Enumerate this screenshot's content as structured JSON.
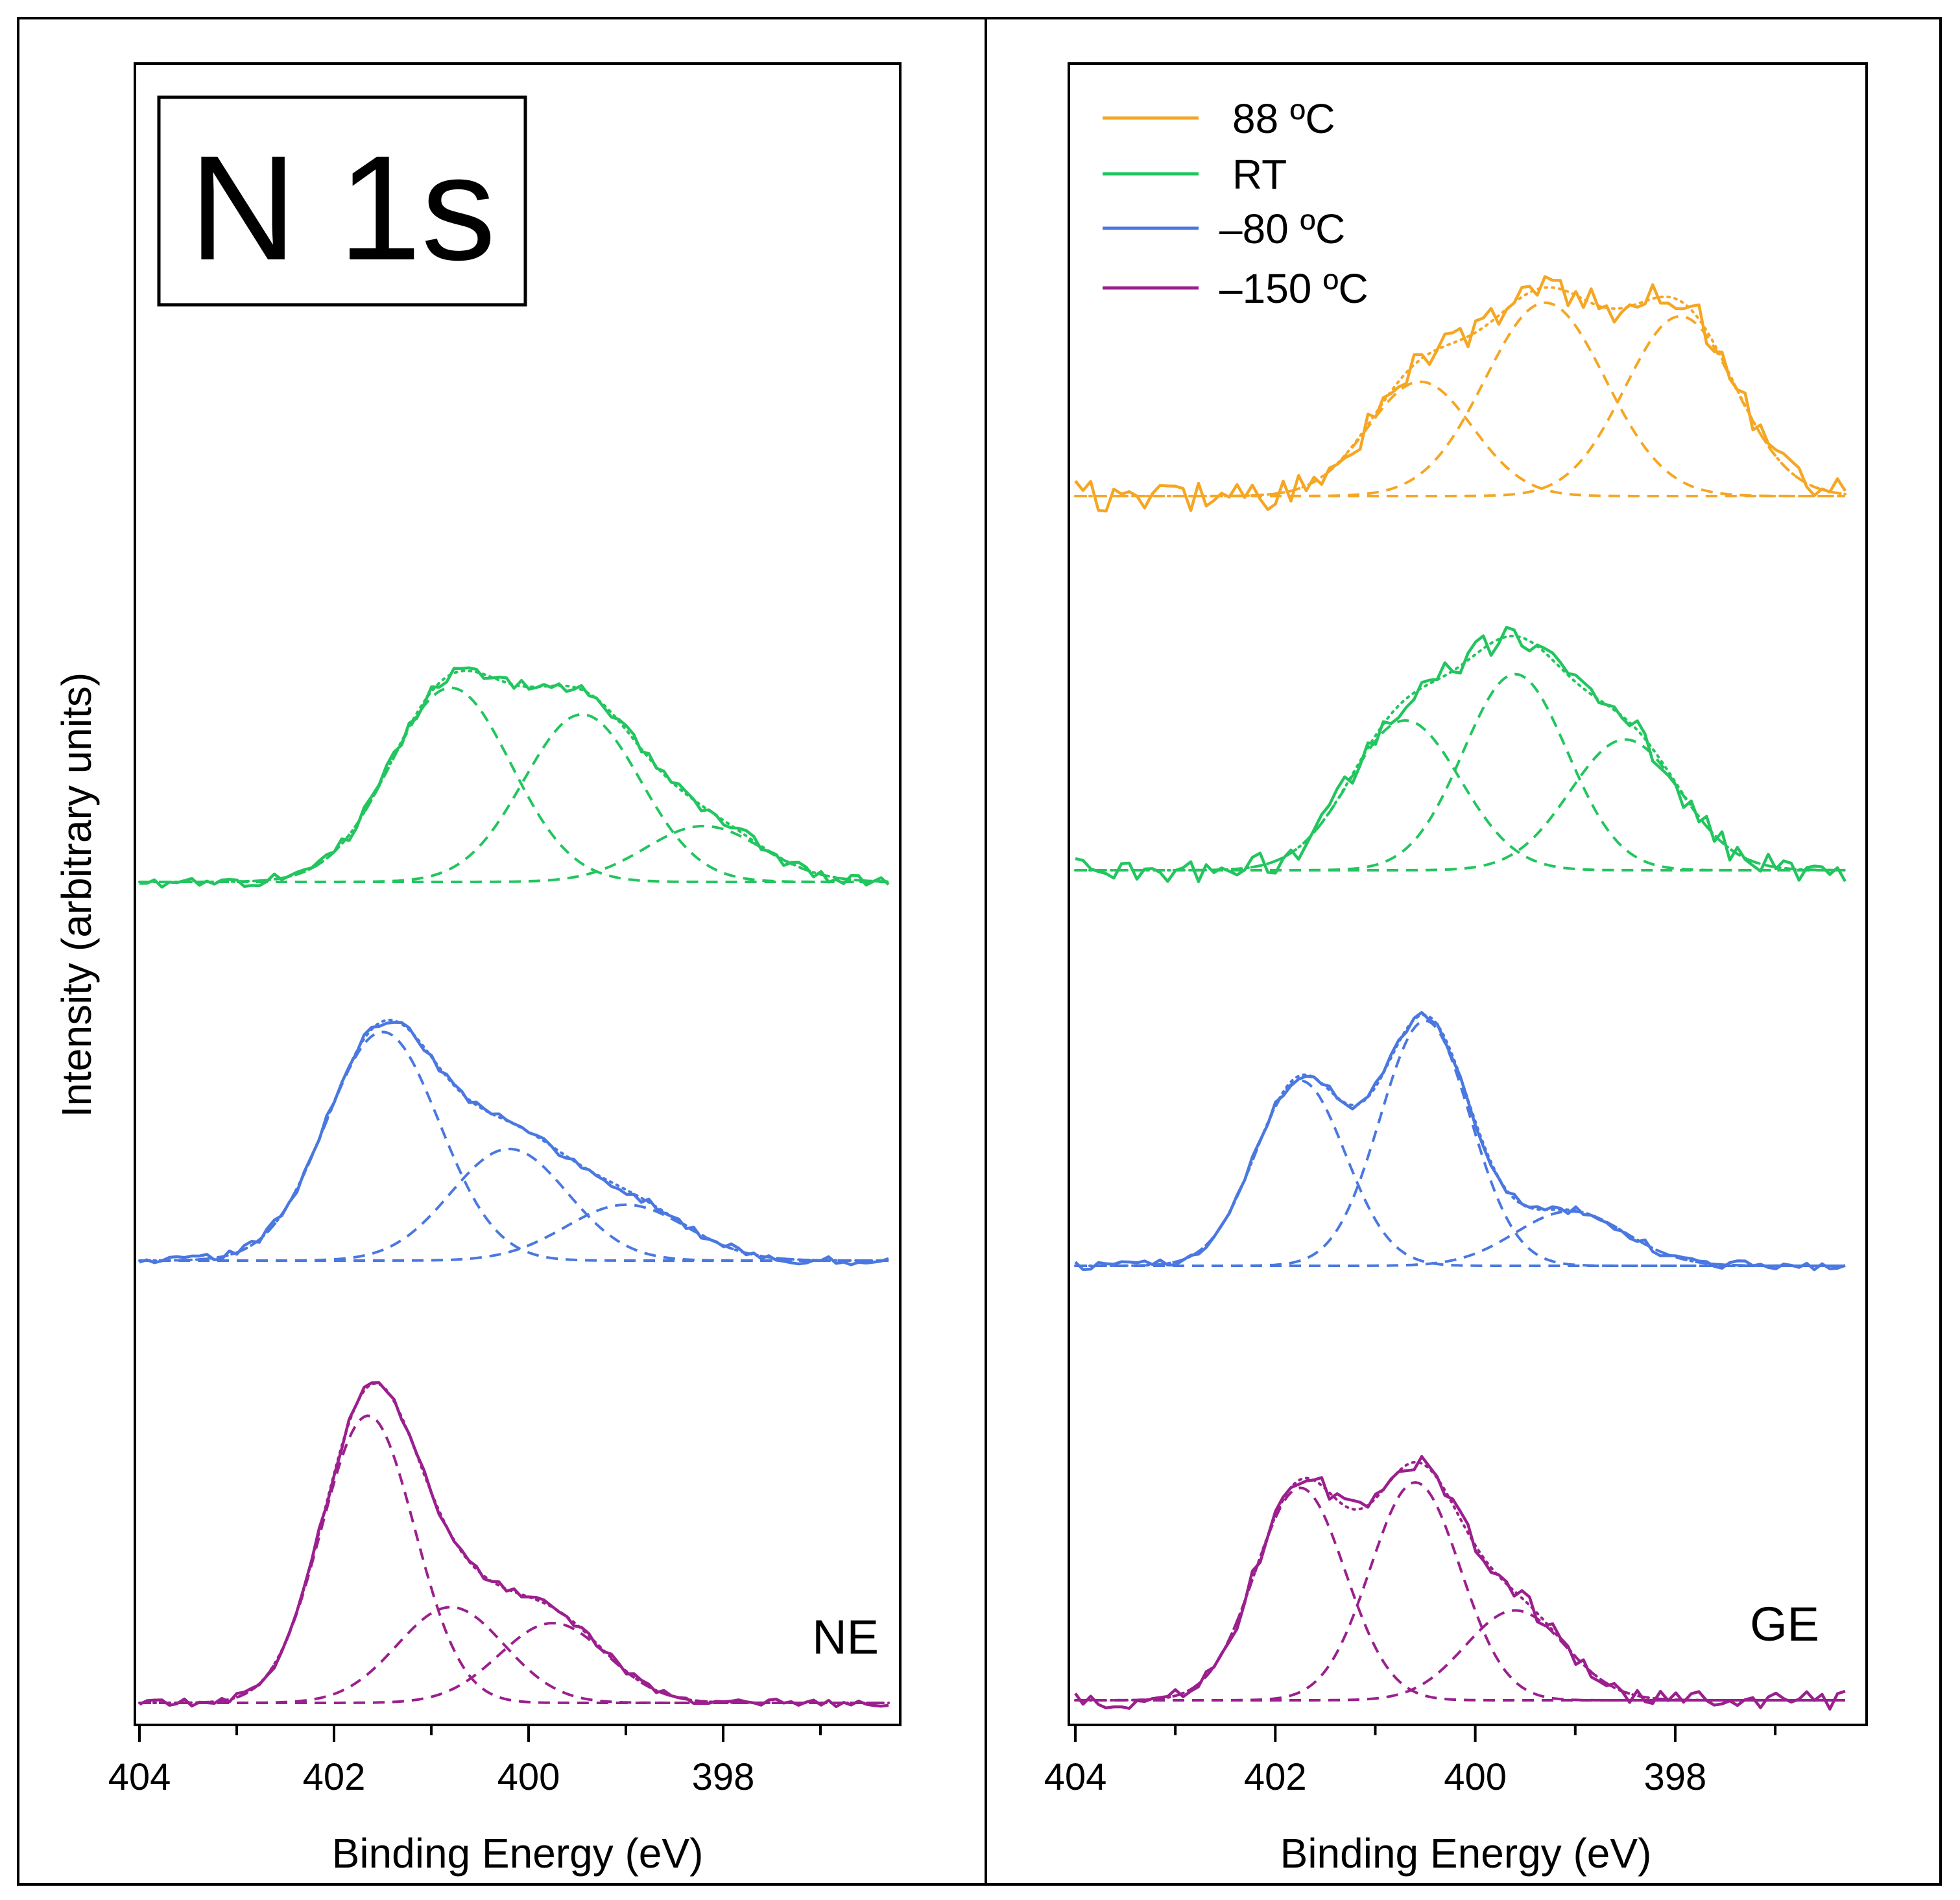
{
  "chart_data": [
    {
      "type": "line",
      "panel": "left",
      "title": "N 1s",
      "panel_label": "NE",
      "xlabel": "Binding Energy (eV)",
      "ylabel": "Intensity (arbitrary units)",
      "xlim": [
        404,
        396.3
      ],
      "x_ticks": [
        404,
        402,
        400,
        398
      ],
      "x_minor_ticks": [
        403,
        401,
        399,
        397
      ],
      "series": [
        {
          "name": "RT",
          "color": "#22c55e",
          "baseline": 0,
          "components": [
            {
              "center": 400.8,
              "amplitude": 0.73,
              "sigma": 0.62
            },
            {
              "center": 399.45,
              "amplitude": 0.63,
              "sigma": 0.6
            },
            {
              "center": 398.2,
              "amplitude": 0.21,
              "sigma": 0.6
            }
          ]
        },
        {
          "name": "-80 ºC",
          "color": "#4a78e0",
          "baseline": 0,
          "components": [
            {
              "center": 401.5,
              "amplitude": 0.86,
              "sigma": 0.58
            },
            {
              "center": 400.2,
              "amplitude": 0.42,
              "sigma": 0.6
            },
            {
              "center": 399.0,
              "amplitude": 0.21,
              "sigma": 0.62
            }
          ]
        },
        {
          "name": "-150 ºC",
          "color": "#9b1f8e",
          "baseline": 0,
          "components": [
            {
              "center": 401.65,
              "amplitude": 1.08,
              "sigma": 0.48
            },
            {
              "center": 400.8,
              "amplitude": 0.36,
              "sigma": 0.55
            },
            {
              "center": 399.75,
              "amplitude": 0.3,
              "sigma": 0.55
            }
          ]
        }
      ]
    },
    {
      "type": "line",
      "panel": "right",
      "panel_label": "GE",
      "xlabel": "Binding Energy (eV)",
      "xlim": [
        404,
        396.3
      ],
      "x_ticks": [
        404,
        402,
        400,
        398
      ],
      "x_minor_ticks": [
        403,
        401,
        399,
        397
      ],
      "legend": [
        "88 ºC",
        "RT",
        "–80 ºC",
        "–150 ºC"
      ],
      "series": [
        {
          "name": "88 ºC",
          "color": "#f5a623",
          "baseline": 0,
          "components": [
            {
              "center": 400.55,
              "amplitude": 0.42,
              "sigma": 0.52
            },
            {
              "center": 399.3,
              "amplitude": 0.71,
              "sigma": 0.6
            },
            {
              "center": 397.95,
              "amplitude": 0.66,
              "sigma": 0.55
            }
          ]
        },
        {
          "name": "RT",
          "color": "#22c55e",
          "baseline": 0,
          "components": [
            {
              "center": 400.7,
              "amplitude": 0.55,
              "sigma": 0.55
            },
            {
              "center": 399.6,
              "amplitude": 0.72,
              "sigma": 0.52
            },
            {
              "center": 398.5,
              "amplitude": 0.48,
              "sigma": 0.55
            }
          ]
        },
        {
          "name": "–80 ºC",
          "color": "#4a78e0",
          "baseline": 0,
          "components": [
            {
              "center": 401.75,
              "amplitude": 0.68,
              "sigma": 0.45
            },
            {
              "center": 400.5,
              "amplitude": 0.9,
              "sigma": 0.45
            },
            {
              "center": 399.05,
              "amplitude": 0.2,
              "sigma": 0.55
            }
          ]
        },
        {
          "name": "–150 ºC",
          "color": "#9b1f8e",
          "baseline": 0,
          "components": [
            {
              "center": 401.75,
              "amplitude": 0.78,
              "sigma": 0.45
            },
            {
              "center": 400.6,
              "amplitude": 0.8,
              "sigma": 0.45
            },
            {
              "center": 399.6,
              "amplitude": 0.33,
              "sigma": 0.5
            }
          ]
        }
      ]
    }
  ]
}
